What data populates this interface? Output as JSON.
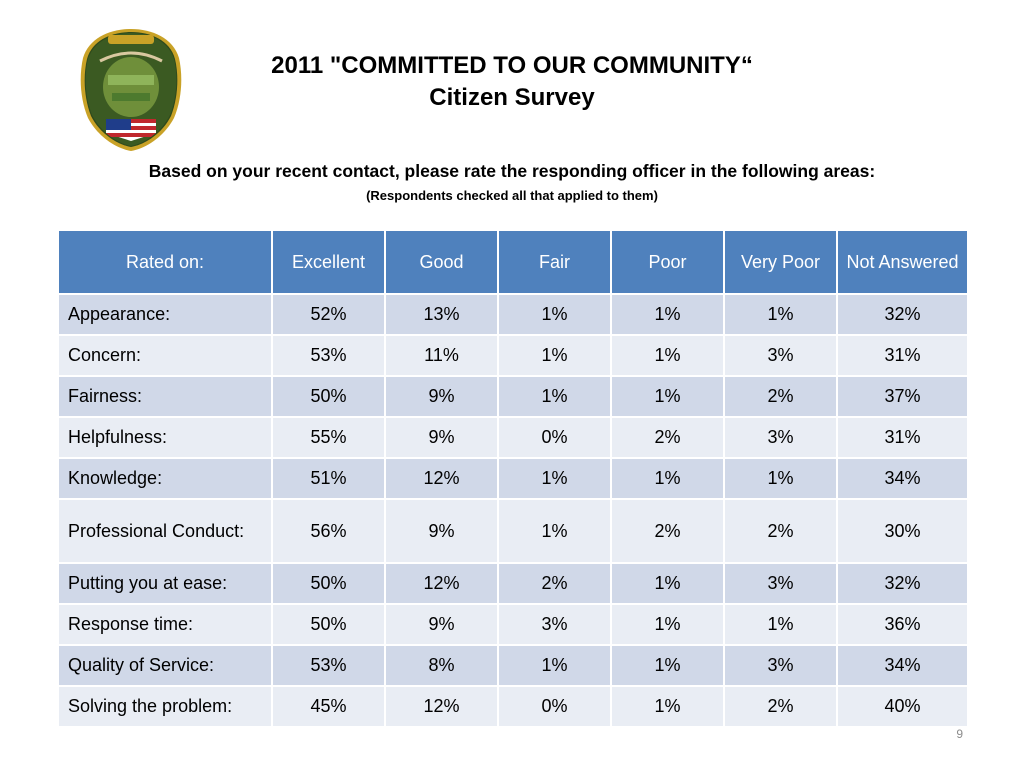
{
  "title": {
    "line1": "2011 \"COMMITTED TO OUR COMMUNITY“",
    "line2": "Citizen Survey"
  },
  "question": "Based on your recent contact, please rate the responding officer in the following areas:",
  "note": "(Respondents checked all that applied to them)",
  "table": {
    "headers": [
      "Rated on:",
      "Excellent",
      "Good",
      "Fair",
      "Poor",
      "Very Poor",
      "Not Answered"
    ],
    "rows": [
      [
        "Appearance:",
        "52%",
        "13%",
        "1%",
        "1%",
        "1%",
        "32%"
      ],
      [
        "Concern:",
        "53%",
        "11%",
        "1%",
        "1%",
        "3%",
        "31%"
      ],
      [
        "Fairness:",
        "50%",
        "9%",
        "1%",
        "1%",
        "2%",
        "37%"
      ],
      [
        "Helpfulness:",
        "55%",
        "9%",
        "0%",
        "2%",
        "3%",
        "31%"
      ],
      [
        "Knowledge:",
        "51%",
        "12%",
        "1%",
        "1%",
        "1%",
        "34%"
      ],
      [
        "Professional Conduct:",
        "56%",
        "9%",
        "1%",
        "2%",
        "2%",
        "30%"
      ],
      [
        "Putting you at ease:",
        "50%",
        "12%",
        "2%",
        "1%",
        "3%",
        "32%"
      ],
      [
        "Response time:",
        "50%",
        "9%",
        "3%",
        "1%",
        "1%",
        "36%"
      ],
      [
        "Quality of Service:",
        "53%",
        "8%",
        "1%",
        "1%",
        "3%",
        "34%"
      ],
      [
        "Solving the problem:",
        "45%",
        "12%",
        "0%",
        "1%",
        "2%",
        "40%"
      ]
    ]
  },
  "page_number": "9",
  "badge": {
    "icon": "police-badge-icon"
  },
  "colors": {
    "header_bg": "#4f81bd",
    "row_odd": "#d0d8e8",
    "row_even": "#e9edf4"
  }
}
